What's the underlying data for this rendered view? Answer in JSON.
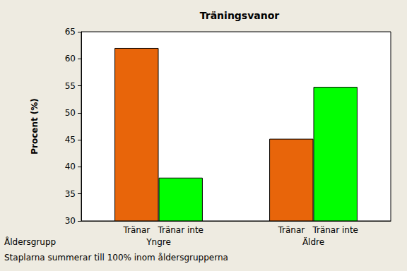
{
  "chart_data": {
    "type": "bar",
    "title": "Träningsvanor",
    "ylabel": "Procent (%)",
    "xlabel": "Åldersgrupp",
    "annotation": "Staplarna summerar till 100% inom åldersgrupperna",
    "categories": [
      "Yngre",
      "Äldre"
    ],
    "series": [
      {
        "name": "Tränar",
        "color": "#e8650a",
        "values": [
          62,
          45.2
        ]
      },
      {
        "name": "Tränar inte",
        "color": "#00ff00",
        "values": [
          38,
          54.8
        ]
      }
    ],
    "ylim": [
      30,
      65
    ],
    "yticks": [
      30,
      35,
      40,
      45,
      50,
      55,
      60,
      65
    ],
    "grid": false
  }
}
